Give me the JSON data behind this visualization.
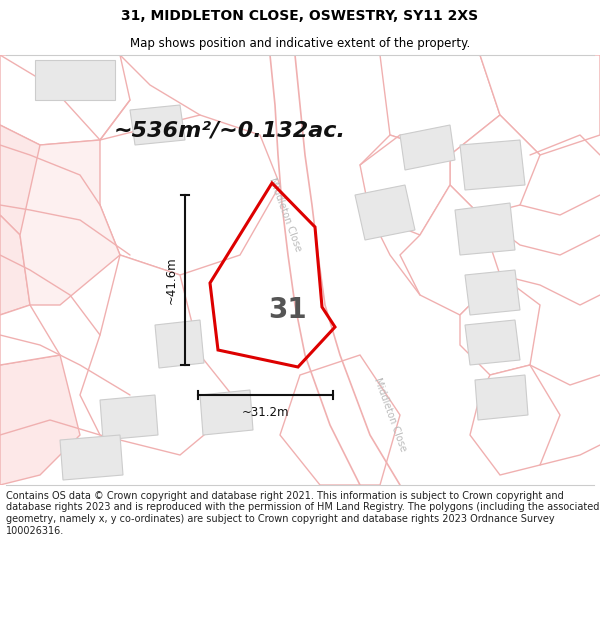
{
  "title_line1": "31, MIDDLETON CLOSE, OSWESTRY, SY11 2XS",
  "title_line2": "Map shows position and indicative extent of the property.",
  "area_text": "~536m²/~0.132ac.",
  "property_number": "31",
  "dim_height": "~41.6m",
  "dim_width": "~31.2m",
  "footer_text": "Contains OS data © Crown copyright and database right 2021. This information is subject to Crown copyright and database rights 2023 and is reproduced with the permission of HM Land Registry. The polygons (including the associated geometry, namely x, y co-ordinates) are subject to Crown copyright and database rights 2023 Ordnance Survey 100026316.",
  "map_bg": "#ffffff",
  "plot_outline_color": "#dd0000",
  "road_line_color": "#f0b0b0",
  "parcel_fill": "#fce8e8",
  "parcel_fill2": "#ffffff",
  "building_fill": "#e8e8e8",
  "building_outline": "#cccccc",
  "dim_line_color": "#111111",
  "road_label_color": "#bbbbbb",
  "title_color": "#000000",
  "footer_color": "#222222",
  "title_fontsize": 10,
  "subtitle_fontsize": 8.5,
  "area_fontsize": 16,
  "number_fontsize": 20,
  "dim_fontsize": 8.5,
  "footer_fontsize": 7,
  "road_label_fontsize": 7
}
